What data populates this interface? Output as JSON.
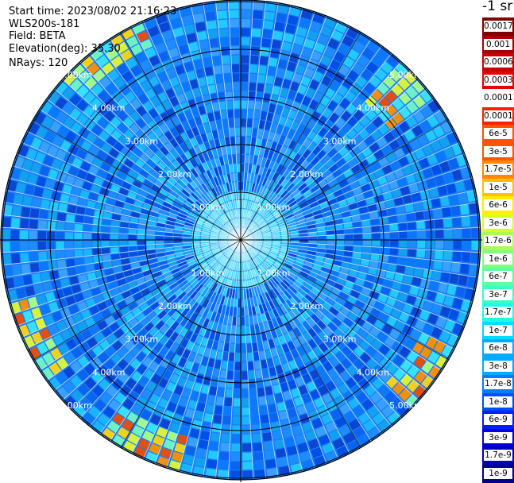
{
  "header": {
    "start_time": "Start time: 2023/08/02 21:16:23",
    "instrument": "WLS200s-181",
    "field": "Field: BETA",
    "elevation": "Elevation(deg): 35.30",
    "nrays": "NRays: 120"
  },
  "chart_data": {
    "type": "heatmap",
    "projection": "polar",
    "rays": 120,
    "range_rings_km": [
      1.0,
      2.0,
      3.0,
      4.0,
      5.0
    ],
    "ring_labels": [
      "1.00km",
      "2.00km",
      "3.00km",
      "4.00km",
      "5.00km"
    ],
    "colorbar": {
      "unit": "-1 sr",
      "colors": [
        "#800000",
        "#b00000",
        "#d80000",
        "#ff0000",
        "#ffffff",
        "#ff3000",
        "#ff6000",
        "#ff9000",
        "#ffc000",
        "#fff000",
        "#e0ff20",
        "#b0ff50",
        "#80ff80",
        "#60ffa0",
        "#40ffc0",
        "#20ffe0",
        "#00e0ff",
        "#00b0ff",
        "#0080ff",
        "#0050ff",
        "#0020ff",
        "#0000e0",
        "#0000b0",
        "#000080"
      ],
      "labels": [
        "0.0017",
        "0.001",
        "0.0006",
        "0.0003",
        "0.00017",
        "0.0001",
        "6e-5",
        "3e-5",
        "1.7e-5",
        "1e-5",
        "6e-6",
        "3e-6",
        "1.7e-6",
        "1e-6",
        "6e-7",
        "3e-7",
        "1.7e-7",
        "1e-7",
        "6e-8",
        "3e-8",
        "1.7e-8",
        "1e-8",
        "6e-9",
        "3e-9",
        "1.7e-9",
        "1e-9"
      ],
      "segment_colors": [
        "#800000",
        "#a80000",
        "#cc0000",
        "#e80000",
        "#ffffff",
        "#ff2000",
        "#ff5400",
        "#ff8a00",
        "#ffc000",
        "#ffee00",
        "#d8ff28",
        "#a8ff58",
        "#80ff80",
        "#5cffa4",
        "#3cffc4",
        "#1cffe4",
        "#00dcff",
        "#00acff",
        "#007cff",
        "#004cff",
        "#001cff",
        "#0000e4",
        "#0000b8",
        "#000088"
      ]
    }
  }
}
